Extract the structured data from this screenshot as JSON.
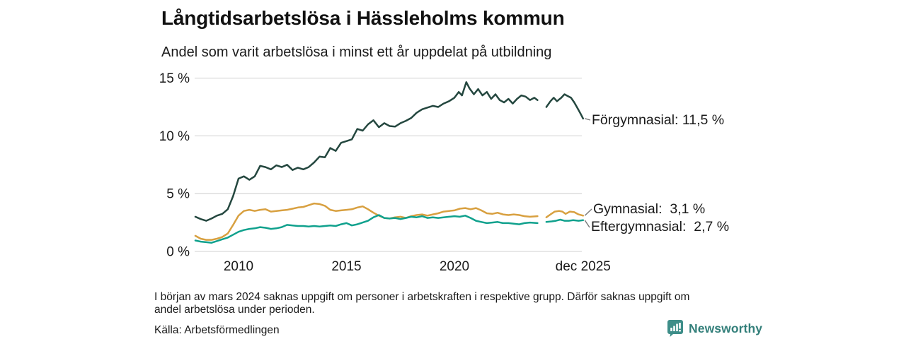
{
  "header": {
    "title": "Långtidsarbetslösa i Hässleholms kommun",
    "subtitle": "Andel som varit arbetslösa i minst ett år uppdelat på utbildning"
  },
  "chart_data": {
    "type": "line",
    "title": "Långtidsarbetslösa i Hässleholms kommun",
    "subtitle": "Andel som varit arbetslösa i minst ett år uppdelat på utbildning",
    "unit": "%",
    "x_range": [
      2008.0,
      2026.3
    ],
    "y_range": [
      0,
      15
    ],
    "grid": "horizontal-only",
    "gridline_color": "#d9d9d9",
    "legend_position": "right-end-labels",
    "data_gap": {
      "from": 2023.9,
      "to": 2024.25,
      "reason": "missing data early March 2024"
    },
    "y_ticks": [
      {
        "label": "0 %",
        "value": 0
      },
      {
        "label": "5 %",
        "value": 5
      },
      {
        "label": "10 %",
        "value": 10
      },
      {
        "label": "15 %",
        "value": 15
      }
    ],
    "x_ticks": [
      {
        "label": "2010",
        "year": 2010
      },
      {
        "label": "2015",
        "year": 2015
      },
      {
        "label": "2020",
        "year": 2020
      },
      {
        "label": "dec 2025",
        "year": 2025.96
      }
    ],
    "series": [
      {
        "name": "Förgymnasial",
        "color": "#24473f",
        "end_value": 11.5,
        "end_label": "Förgymnasial: 11,5 %",
        "points": [
          [
            2008,
            3.0
          ],
          [
            2008.25,
            2.8
          ],
          [
            2008.5,
            2.65
          ],
          [
            2008.75,
            2.85
          ],
          [
            2009,
            3.1
          ],
          [
            2009.25,
            3.25
          ],
          [
            2009.5,
            3.65
          ],
          [
            2009.75,
            4.8
          ],
          [
            2010,
            6.3
          ],
          [
            2010.25,
            6.5
          ],
          [
            2010.5,
            6.2
          ],
          [
            2010.75,
            6.5
          ],
          [
            2011,
            7.4
          ],
          [
            2011.25,
            7.3
          ],
          [
            2011.5,
            7.1
          ],
          [
            2011.75,
            7.45
          ],
          [
            2012,
            7.3
          ],
          [
            2012.25,
            7.5
          ],
          [
            2012.5,
            7.05
          ],
          [
            2012.75,
            7.25
          ],
          [
            2013,
            7.1
          ],
          [
            2013.25,
            7.3
          ],
          [
            2013.5,
            7.7
          ],
          [
            2013.75,
            8.2
          ],
          [
            2014,
            8.15
          ],
          [
            2014.25,
            8.95
          ],
          [
            2014.5,
            8.7
          ],
          [
            2014.75,
            9.4
          ],
          [
            2015,
            9.55
          ],
          [
            2015.25,
            9.7
          ],
          [
            2015.5,
            10.6
          ],
          [
            2015.75,
            10.45
          ],
          [
            2016,
            11.0
          ],
          [
            2016.25,
            11.35
          ],
          [
            2016.5,
            10.75
          ],
          [
            2016.75,
            11.1
          ],
          [
            2017,
            10.85
          ],
          [
            2017.25,
            10.8
          ],
          [
            2017.5,
            11.1
          ],
          [
            2017.75,
            11.3
          ],
          [
            2018,
            11.55
          ],
          [
            2018.25,
            12.0
          ],
          [
            2018.5,
            12.3
          ],
          [
            2018.75,
            12.45
          ],
          [
            2019,
            12.6
          ],
          [
            2019.25,
            12.5
          ],
          [
            2019.5,
            12.8
          ],
          [
            2019.75,
            13.0
          ],
          [
            2020,
            13.3
          ],
          [
            2020.2,
            13.8
          ],
          [
            2020.35,
            13.5
          ],
          [
            2020.55,
            14.65
          ],
          [
            2020.7,
            14.1
          ],
          [
            2020.9,
            13.6
          ],
          [
            2021.1,
            14.05
          ],
          [
            2021.3,
            13.5
          ],
          [
            2021.5,
            13.8
          ],
          [
            2021.7,
            13.2
          ],
          [
            2021.9,
            13.6
          ],
          [
            2022.1,
            13.1
          ],
          [
            2022.3,
            12.9
          ],
          [
            2022.5,
            13.2
          ],
          [
            2022.7,
            12.8
          ],
          [
            2022.9,
            13.2
          ],
          [
            2023.1,
            13.5
          ],
          [
            2023.3,
            13.4
          ],
          [
            2023.5,
            13.1
          ],
          [
            2023.7,
            13.3
          ],
          [
            2023.85,
            13.1
          ],
          [
            2024,
            null
          ],
          [
            2024.26,
            12.5
          ],
          [
            2024.45,
            13.0
          ],
          [
            2024.6,
            13.3
          ],
          [
            2024.75,
            13.0
          ],
          [
            2024.95,
            13.3
          ],
          [
            2025.1,
            13.6
          ],
          [
            2025.25,
            13.45
          ],
          [
            2025.4,
            13.3
          ],
          [
            2025.55,
            12.9
          ],
          [
            2025.7,
            12.4
          ],
          [
            2025.85,
            11.9
          ],
          [
            2025.96,
            11.5
          ]
        ]
      },
      {
        "name": "Gymnasial",
        "color": "#d8a040",
        "end_value": 3.1,
        "end_label": "Gymnasial:  3,1 %",
        "points": [
          [
            2008,
            1.35
          ],
          [
            2008.25,
            1.1
          ],
          [
            2008.5,
            1.0
          ],
          [
            2008.75,
            1.0
          ],
          [
            2009,
            1.1
          ],
          [
            2009.25,
            1.25
          ],
          [
            2009.5,
            1.55
          ],
          [
            2009.75,
            2.3
          ],
          [
            2010,
            3.1
          ],
          [
            2010.25,
            3.5
          ],
          [
            2010.5,
            3.6
          ],
          [
            2010.75,
            3.5
          ],
          [
            2011,
            3.6
          ],
          [
            2011.25,
            3.65
          ],
          [
            2011.5,
            3.45
          ],
          [
            2011.75,
            3.5
          ],
          [
            2012,
            3.55
          ],
          [
            2012.25,
            3.6
          ],
          [
            2012.5,
            3.7
          ],
          [
            2012.75,
            3.8
          ],
          [
            2013,
            3.85
          ],
          [
            2013.25,
            4.0
          ],
          [
            2013.5,
            4.15
          ],
          [
            2013.75,
            4.1
          ],
          [
            2014,
            3.95
          ],
          [
            2014.25,
            3.6
          ],
          [
            2014.5,
            3.5
          ],
          [
            2014.75,
            3.55
          ],
          [
            2015,
            3.6
          ],
          [
            2015.25,
            3.65
          ],
          [
            2015.5,
            3.8
          ],
          [
            2015.75,
            3.9
          ],
          [
            2016,
            3.65
          ],
          [
            2016.25,
            3.35
          ],
          [
            2016.5,
            3.1
          ],
          [
            2016.75,
            2.9
          ],
          [
            2017,
            2.85
          ],
          [
            2017.25,
            2.95
          ],
          [
            2017.5,
            3.0
          ],
          [
            2017.75,
            2.9
          ],
          [
            2018,
            3.05
          ],
          [
            2018.25,
            3.15
          ],
          [
            2018.5,
            3.2
          ],
          [
            2018.75,
            3.1
          ],
          [
            2019,
            3.2
          ],
          [
            2019.25,
            3.3
          ],
          [
            2019.5,
            3.45
          ],
          [
            2019.75,
            3.5
          ],
          [
            2020,
            3.55
          ],
          [
            2020.25,
            3.7
          ],
          [
            2020.5,
            3.75
          ],
          [
            2020.75,
            3.65
          ],
          [
            2021,
            3.75
          ],
          [
            2021.25,
            3.55
          ],
          [
            2021.5,
            3.3
          ],
          [
            2021.75,
            3.25
          ],
          [
            2022,
            3.35
          ],
          [
            2022.25,
            3.2
          ],
          [
            2022.5,
            3.15
          ],
          [
            2022.75,
            3.2
          ],
          [
            2023,
            3.15
          ],
          [
            2023.25,
            3.05
          ],
          [
            2023.5,
            3.0
          ],
          [
            2023.85,
            3.05
          ],
          [
            2024,
            null
          ],
          [
            2024.26,
            2.95
          ],
          [
            2024.45,
            3.2
          ],
          [
            2024.65,
            3.45
          ],
          [
            2024.85,
            3.5
          ],
          [
            2025.0,
            3.45
          ],
          [
            2025.15,
            3.25
          ],
          [
            2025.35,
            3.45
          ],
          [
            2025.55,
            3.4
          ],
          [
            2025.75,
            3.2
          ],
          [
            2025.96,
            3.1
          ]
        ]
      },
      {
        "name": "Eftergymnasial",
        "color": "#10a18d",
        "end_value": 2.7,
        "end_label": "Eftergymnasial:  2,7 %",
        "points": [
          [
            2008,
            0.95
          ],
          [
            2008.25,
            0.85
          ],
          [
            2008.5,
            0.8
          ],
          [
            2008.75,
            0.75
          ],
          [
            2009,
            0.9
          ],
          [
            2009.25,
            1.05
          ],
          [
            2009.5,
            1.2
          ],
          [
            2009.75,
            1.45
          ],
          [
            2010,
            1.7
          ],
          [
            2010.25,
            1.85
          ],
          [
            2010.5,
            1.95
          ],
          [
            2010.75,
            2.0
          ],
          [
            2011,
            2.1
          ],
          [
            2011.25,
            2.05
          ],
          [
            2011.5,
            1.95
          ],
          [
            2011.75,
            2.0
          ],
          [
            2012,
            2.1
          ],
          [
            2012.25,
            2.3
          ],
          [
            2012.5,
            2.25
          ],
          [
            2012.75,
            2.2
          ],
          [
            2013,
            2.2
          ],
          [
            2013.25,
            2.15
          ],
          [
            2013.5,
            2.2
          ],
          [
            2013.75,
            2.15
          ],
          [
            2014,
            2.2
          ],
          [
            2014.25,
            2.25
          ],
          [
            2014.5,
            2.2
          ],
          [
            2014.75,
            2.35
          ],
          [
            2015,
            2.45
          ],
          [
            2015.25,
            2.25
          ],
          [
            2015.5,
            2.35
          ],
          [
            2015.75,
            2.5
          ],
          [
            2016,
            2.65
          ],
          [
            2016.25,
            2.95
          ],
          [
            2016.5,
            3.15
          ],
          [
            2016.75,
            2.9
          ],
          [
            2017,
            2.85
          ],
          [
            2017.25,
            2.9
          ],
          [
            2017.5,
            2.8
          ],
          [
            2017.75,
            2.9
          ],
          [
            2018,
            3.0
          ],
          [
            2018.25,
            2.95
          ],
          [
            2018.5,
            3.05
          ],
          [
            2018.75,
            2.9
          ],
          [
            2019,
            2.95
          ],
          [
            2019.25,
            2.9
          ],
          [
            2019.5,
            2.95
          ],
          [
            2019.75,
            3.0
          ],
          [
            2020,
            3.05
          ],
          [
            2020.25,
            3.0
          ],
          [
            2020.5,
            3.1
          ],
          [
            2020.75,
            2.9
          ],
          [
            2021,
            2.65
          ],
          [
            2021.25,
            2.55
          ],
          [
            2021.5,
            2.45
          ],
          [
            2021.75,
            2.5
          ],
          [
            2022,
            2.55
          ],
          [
            2022.25,
            2.45
          ],
          [
            2022.5,
            2.45
          ],
          [
            2022.75,
            2.4
          ],
          [
            2023,
            2.35
          ],
          [
            2023.25,
            2.45
          ],
          [
            2023.5,
            2.5
          ],
          [
            2023.85,
            2.45
          ],
          [
            2024,
            null
          ],
          [
            2024.26,
            2.55
          ],
          [
            2024.5,
            2.6
          ],
          [
            2024.7,
            2.65
          ],
          [
            2024.9,
            2.75
          ],
          [
            2025.1,
            2.65
          ],
          [
            2025.3,
            2.65
          ],
          [
            2025.5,
            2.7
          ],
          [
            2025.75,
            2.65
          ],
          [
            2025.96,
            2.7
          ]
        ]
      }
    ]
  },
  "footer": {
    "footnote_lines": [
      "I början av mars 2024 saknas uppgift om personer i arbetskraften i respektive grupp. Därför saknas uppgift om",
      "andel arbetslösa under perioden."
    ],
    "source": "Källa: Arbetsförmedlingen",
    "brand": {
      "name": "Newsworthy",
      "icon": "bar-chart-bubble-icon",
      "color": "#337f7a",
      "icon_color": "#3e8e89"
    }
  }
}
